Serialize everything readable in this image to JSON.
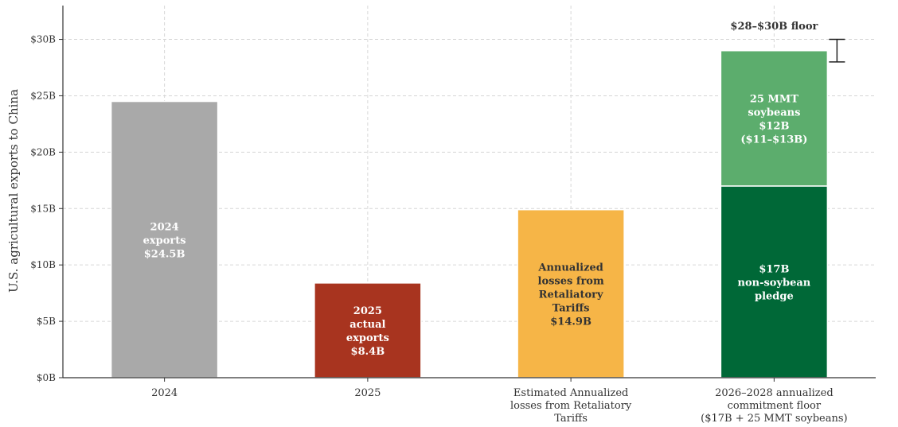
{
  "chart_data": {
    "type": "bar",
    "ylabel": "U.S. agricultural exports to China",
    "ylim": [
      0,
      33
    ],
    "yticks": [
      {
        "value": 0,
        "label": "$0B"
      },
      {
        "value": 5,
        "label": "$5B"
      },
      {
        "value": 10,
        "label": "$10B"
      },
      {
        "value": 15,
        "label": "$15B"
      },
      {
        "value": 20,
        "label": "$20B"
      },
      {
        "value": 25,
        "label": "$25B"
      },
      {
        "value": 30,
        "label": "$30B"
      }
    ],
    "grid": true,
    "categories": [
      [
        "2024"
      ],
      [
        "2025"
      ],
      [
        "Estimated Annualized",
        "losses from Retaliatory",
        "Tariffs"
      ],
      [
        "2026–2028 annualized",
        "commitment floor",
        "($17B + 25 MMT soybeans)"
      ]
    ],
    "bars": [
      {
        "category": 0,
        "segments": [
          {
            "start": 0,
            "value": 24.5,
            "color": "#a9a9a9",
            "text_color": "#ffffff",
            "label": [
              "2024",
              "exports",
              "$24.5B"
            ]
          }
        ]
      },
      {
        "category": 1,
        "segments": [
          {
            "start": 0,
            "value": 8.4,
            "color": "#a8341f",
            "text_color": "#ffffff",
            "label": [
              "2025",
              "actual",
              "exports",
              "$8.4B"
            ]
          }
        ]
      },
      {
        "category": 2,
        "segments": [
          {
            "start": 0,
            "value": 14.9,
            "color": "#f6b547",
            "text_color": "#333333",
            "label": [
              "Annualized",
              "losses from",
              "Retaliatory",
              "Tariffs",
              "$14.9B"
            ]
          }
        ]
      },
      {
        "category": 3,
        "segments": [
          {
            "start": 0,
            "value": 17,
            "color": "#006837",
            "text_color": "#ffffff",
            "label": [
              "$17B",
              "non-soybean",
              "pledge"
            ]
          },
          {
            "start": 17,
            "value": 12,
            "color": "#5cad6d",
            "text_color": "#ffffff",
            "label": [
              "25 MMT",
              "soybeans",
              "$12B",
              "($11–$13B)"
            ]
          }
        ]
      }
    ],
    "range_annotation": {
      "category": 3,
      "low": 28,
      "high": 30,
      "label": "$28–$30B floor"
    }
  }
}
